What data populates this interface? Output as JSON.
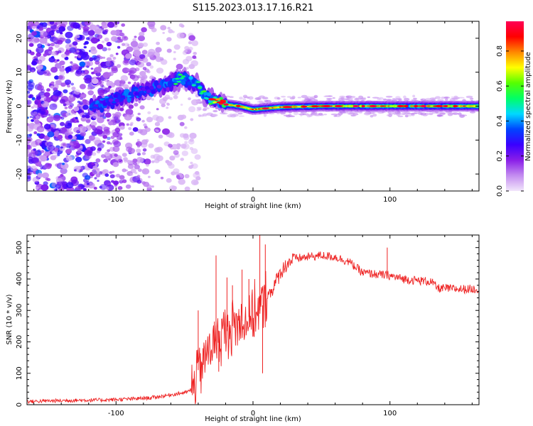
{
  "title": "S115.2023.013.17.16.R21",
  "chart_data": [
    {
      "type": "heatmap",
      "xlabel": "Height of straight line (km)",
      "ylabel": "Frequency (Hz)",
      "xlim": [
        -165,
        165
      ],
      "ylim": [
        -25,
        25
      ],
      "xticks": [
        -100,
        0,
        100
      ],
      "yticks": [
        -20,
        -10,
        0,
        10,
        20
      ],
      "colorbar": {
        "label": "Normalized spectral amplitude",
        "range": [
          0,
          0.97
        ],
        "ticks": [
          0.0,
          0.2,
          0.4,
          0.6,
          0.8
        ],
        "colors": [
          "#f2e6fb",
          "#c48df0",
          "#8a1ee8",
          "#3a00ff",
          "#0044ff",
          "#00d9ff",
          "#00ff66",
          "#55ff00",
          "#ffff00",
          "#ff8800",
          "#ff0000",
          "#ff0055"
        ]
      },
      "ridge": {
        "description": "frequency of peak spectral amplitude vs height",
        "x": [
          -115,
          -100,
          -90,
          -80,
          -70,
          -60,
          -50,
          -40,
          -35,
          -30,
          -25,
          -20,
          -10,
          0,
          20,
          50,
          100,
          165
        ],
        "y": [
          0,
          2,
          3,
          5,
          5.5,
          7,
          8,
          6,
          3,
          2,
          1.5,
          0.5,
          0,
          -1,
          -0.3,
          0,
          0,
          0
        ]
      },
      "grid": false
    },
    {
      "type": "line",
      "xlabel": "Height of straight line (km)",
      "ylabel": "SNR (10 * v/v)",
      "xlim": [
        -165,
        165
      ],
      "ylim": [
        0,
        540
      ],
      "xticks": [
        -100,
        0,
        100
      ],
      "yticks": [
        0,
        100,
        200,
        300,
        400,
        500
      ],
      "series": [
        {
          "color": "#ee2222",
          "x": [
            -165,
            -150,
            -130,
            -110,
            -90,
            -75,
            -65,
            -55,
            -48,
            -43,
            -40,
            -35,
            -30,
            -25,
            -20,
            -15,
            -10,
            -5,
            0,
            5,
            10,
            15,
            20,
            25,
            30,
            40,
            50,
            60,
            70,
            80,
            90,
            100,
            110,
            120,
            130,
            135,
            140,
            150,
            165
          ],
          "y": [
            10,
            12,
            14,
            15,
            18,
            22,
            28,
            35,
            40,
            55,
            110,
            150,
            190,
            210,
            230,
            250,
            260,
            275,
            285,
            300,
            340,
            375,
            420,
            450,
            465,
            470,
            475,
            470,
            455,
            420,
            415,
            410,
            400,
            395,
            392,
            370,
            370,
            368,
            368
          ]
        }
      ],
      "spikes": {
        "x": [
          -40,
          -27,
          -25,
          -19,
          -15,
          -8,
          -3,
          5,
          7,
          9,
          98
        ],
        "y": [
          300,
          475,
          105,
          405,
          380,
          430,
          400,
          540,
          100,
          510,
          500
        ]
      },
      "grid": false
    }
  ]
}
